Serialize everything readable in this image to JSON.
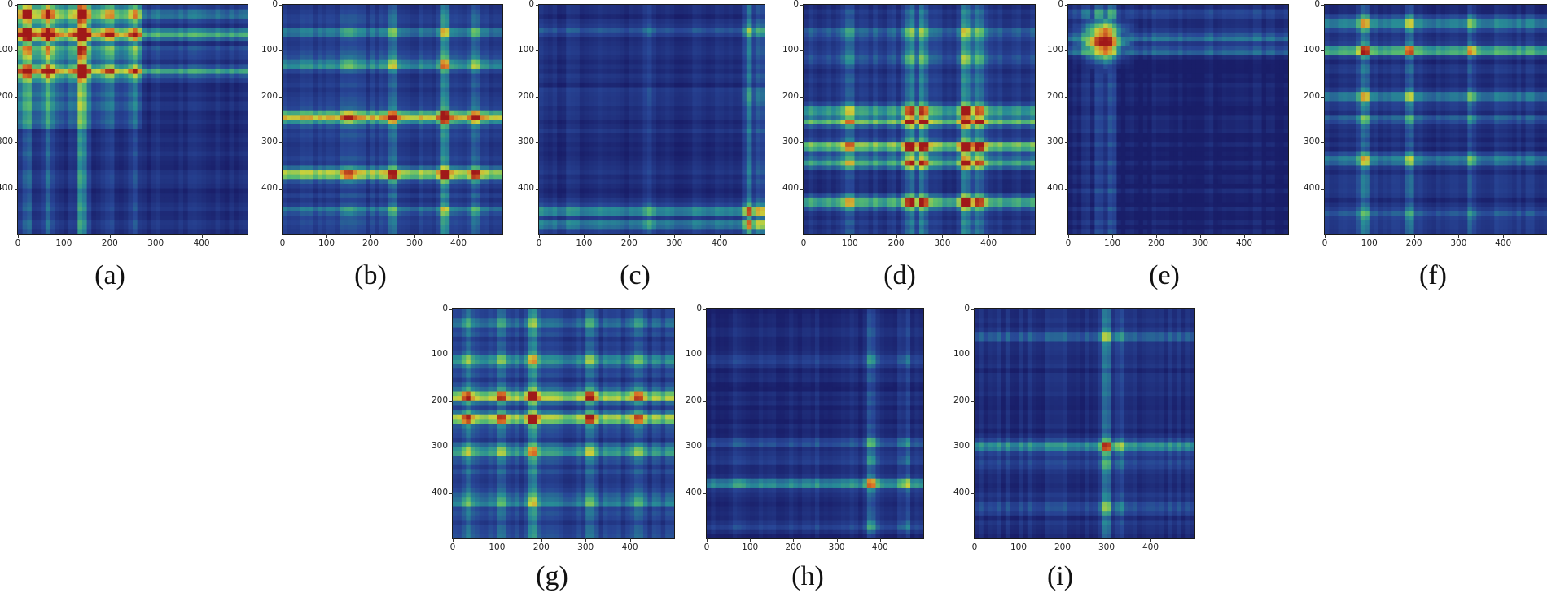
{
  "chart_data": [
    {
      "id": "a",
      "type": "heatmap",
      "caption": "(a)",
      "xlim": [
        0,
        500
      ],
      "ylim": [
        0,
        500
      ],
      "xticks": [
        0,
        100,
        200,
        300,
        400
      ],
      "yticks": [
        0,
        100,
        200,
        300,
        400
      ],
      "hot_rows": [
        [
          65,
          0.85
        ],
        [
          145,
          0.7
        ],
        [
          20,
          0.55
        ],
        [
          100,
          0.35
        ]
      ],
      "hot_cols": [
        [
          20,
          0.6
        ],
        [
          65,
          0.5
        ],
        [
          140,
          0.85
        ],
        [
          200,
          0.35
        ],
        [
          255,
          0.3
        ]
      ],
      "base": 0.1,
      "region": [
        0,
        0,
        270,
        270
      ],
      "region_boost": 0.3
    },
    {
      "id": "b",
      "type": "heatmap",
      "caption": "(b)",
      "xlim": [
        0,
        500
      ],
      "ylim": [
        0,
        500
      ],
      "xticks": [
        0,
        100,
        200,
        300,
        400
      ],
      "yticks": [
        0,
        100,
        200,
        300,
        400
      ],
      "hot_rows": [
        [
          245,
          0.95
        ],
        [
          370,
          0.9
        ],
        [
          130,
          0.45
        ],
        [
          60,
          0.35
        ],
        [
          450,
          0.3
        ]
      ],
      "hot_cols": [
        [
          150,
          0.35
        ],
        [
          250,
          0.45
        ],
        [
          370,
          0.6
        ],
        [
          440,
          0.4
        ]
      ],
      "base": 0.18
    },
    {
      "id": "c",
      "type": "heatmap",
      "caption": "(c)",
      "xlim": [
        0,
        500
      ],
      "ylim": [
        0,
        500
      ],
      "xticks": [
        0,
        100,
        200,
        300,
        400
      ],
      "yticks": [
        0,
        100,
        200,
        300,
        400
      ],
      "hot_rows": [
        [
          450,
          0.55
        ],
        [
          480,
          0.5
        ],
        [
          60,
          0.3
        ],
        [
          200,
          0.2
        ]
      ],
      "hot_cols": [
        [
          465,
          0.6
        ],
        [
          490,
          0.55
        ],
        [
          250,
          0.15
        ]
      ],
      "base": 0.1
    },
    {
      "id": "d",
      "type": "heatmap",
      "caption": "(d)",
      "xlim": [
        0,
        500
      ],
      "ylim": [
        0,
        500
      ],
      "xticks": [
        0,
        100,
        200,
        300,
        400
      ],
      "yticks": [
        0,
        100,
        200,
        300,
        400
      ],
      "hot_rows": [
        [
          230,
          0.7
        ],
        [
          255,
          0.7
        ],
        [
          310,
          0.85
        ],
        [
          345,
          0.6
        ],
        [
          430,
          0.75
        ],
        [
          60,
          0.3
        ],
        [
          120,
          0.3
        ]
      ],
      "hot_cols": [
        [
          230,
          0.6
        ],
        [
          260,
          0.55
        ],
        [
          350,
          0.75
        ],
        [
          380,
          0.5
        ],
        [
          100,
          0.25
        ]
      ],
      "base": 0.14
    },
    {
      "id": "e",
      "type": "heatmap",
      "caption": "(e)",
      "xlim": [
        0,
        500
      ],
      "ylim": [
        0,
        500
      ],
      "xticks": [
        0,
        100,
        200,
        300,
        400
      ],
      "yticks": [
        0,
        100,
        200,
        300,
        400
      ],
      "hot_rows": [
        [
          70,
          0.6
        ],
        [
          100,
          0.55
        ],
        [
          20,
          0.3
        ]
      ],
      "hot_cols": [
        [
          70,
          0.6
        ],
        [
          100,
          0.55
        ],
        [
          40,
          0.35
        ]
      ],
      "base": 0.03,
      "spot": [
        80,
        80,
        1.0,
        35
      ]
    },
    {
      "id": "f",
      "type": "heatmap",
      "caption": "(f)",
      "xlim": [
        0,
        500
      ],
      "ylim": [
        0,
        500
      ],
      "xticks": [
        0,
        100,
        200,
        300,
        400
      ],
      "yticks": [
        0,
        100,
        200,
        300,
        400
      ],
      "hot_rows": [
        [
          100,
          0.8
        ],
        [
          40,
          0.55
        ],
        [
          200,
          0.6
        ],
        [
          340,
          0.55
        ],
        [
          250,
          0.3
        ],
        [
          460,
          0.25
        ]
      ],
      "hot_cols": [
        [
          90,
          0.5
        ],
        [
          190,
          0.4
        ],
        [
          330,
          0.3
        ]
      ],
      "base": 0.12
    },
    {
      "id": "g",
      "type": "heatmap",
      "caption": "(g)",
      "xlim": [
        0,
        500
      ],
      "ylim": [
        0,
        500
      ],
      "xticks": [
        0,
        100,
        200,
        300,
        400
      ],
      "yticks": [
        0,
        100,
        200,
        300,
        400
      ],
      "hot_rows": [
        [
          190,
          0.85
        ],
        [
          240,
          0.85
        ],
        [
          110,
          0.4
        ],
        [
          310,
          0.45
        ],
        [
          420,
          0.35
        ],
        [
          30,
          0.3
        ]
      ],
      "hot_cols": [
        [
          30,
          0.35
        ],
        [
          110,
          0.35
        ],
        [
          180,
          0.55
        ],
        [
          310,
          0.45
        ],
        [
          420,
          0.35
        ]
      ],
      "base": 0.18
    },
    {
      "id": "h",
      "type": "heatmap",
      "caption": "(h)",
      "xlim": [
        0,
        500
      ],
      "ylim": [
        0,
        500
      ],
      "xticks": [
        0,
        100,
        200,
        300,
        400
      ],
      "yticks": [
        0,
        100,
        200,
        300,
        400
      ],
      "hot_rows": [
        [
          380,
          0.7
        ],
        [
          290,
          0.35
        ],
        [
          330,
          0.3
        ],
        [
          110,
          0.25
        ],
        [
          470,
          0.3
        ]
      ],
      "hot_cols": [
        [
          380,
          0.55
        ],
        [
          460,
          0.3
        ],
        [
          80,
          0.15
        ]
      ],
      "base": 0.06
    },
    {
      "id": "i",
      "type": "heatmap",
      "caption": "(i)",
      "xlim": [
        0,
        500
      ],
      "ylim": [
        0,
        500
      ],
      "xticks": [
        0,
        100,
        200,
        300,
        400
      ],
      "yticks": [
        0,
        100,
        200,
        300,
        400
      ],
      "hot_rows": [
        [
          300,
          0.65
        ],
        [
          430,
          0.35
        ],
        [
          60,
          0.3
        ],
        [
          340,
          0.2
        ]
      ],
      "hot_cols": [
        [
          300,
          0.65
        ],
        [
          330,
          0.25
        ]
      ],
      "base": 0.1,
      "spot": [
        300,
        300,
        0.95,
        12
      ]
    }
  ]
}
